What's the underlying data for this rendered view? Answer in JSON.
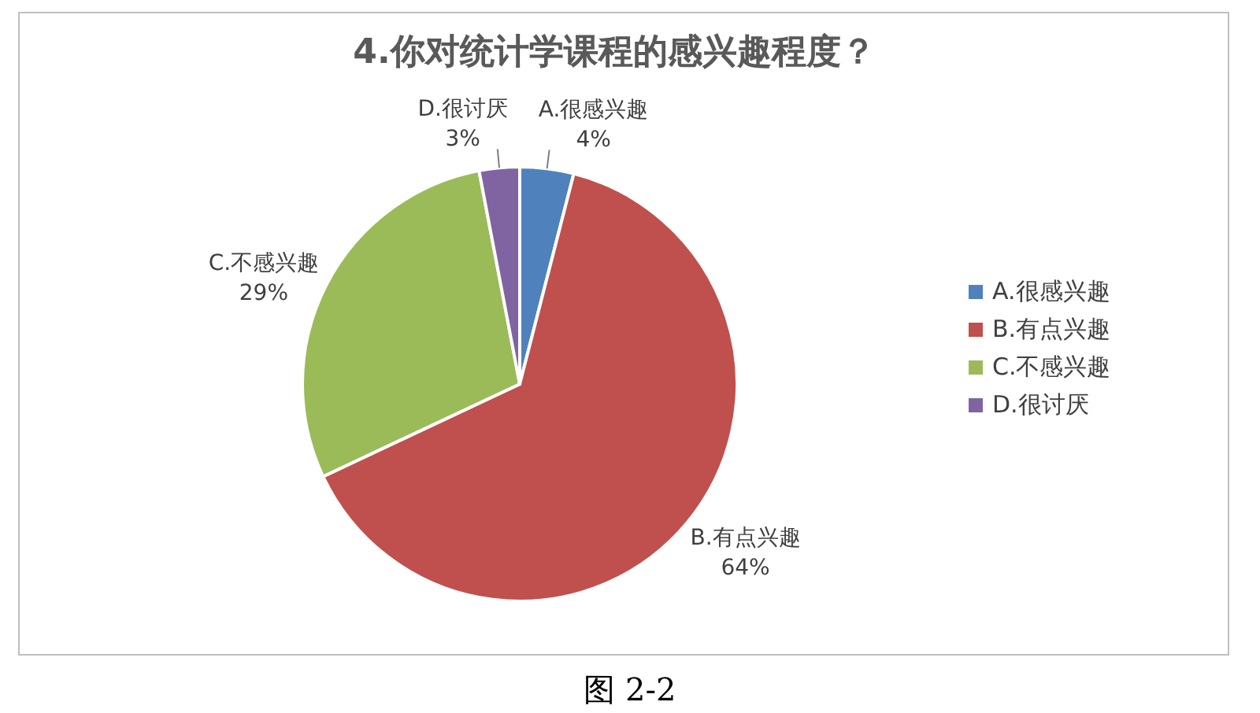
{
  "chart_data": {
    "type": "pie",
    "title": "4.你对统计学课程的感兴趣程度？",
    "categories": [
      "A.很感兴趣",
      "B.有点兴趣",
      "C.不感兴趣",
      "D.很讨厌"
    ],
    "values": [
      4,
      64,
      29,
      3
    ],
    "value_labels": [
      "4%",
      "64%",
      "29%",
      "3%"
    ],
    "colors": [
      "#4f81bd",
      "#c0504d",
      "#9bbb59",
      "#8064a2"
    ],
    "legend": "right",
    "annotations": [
      "图 2-2"
    ]
  }
}
